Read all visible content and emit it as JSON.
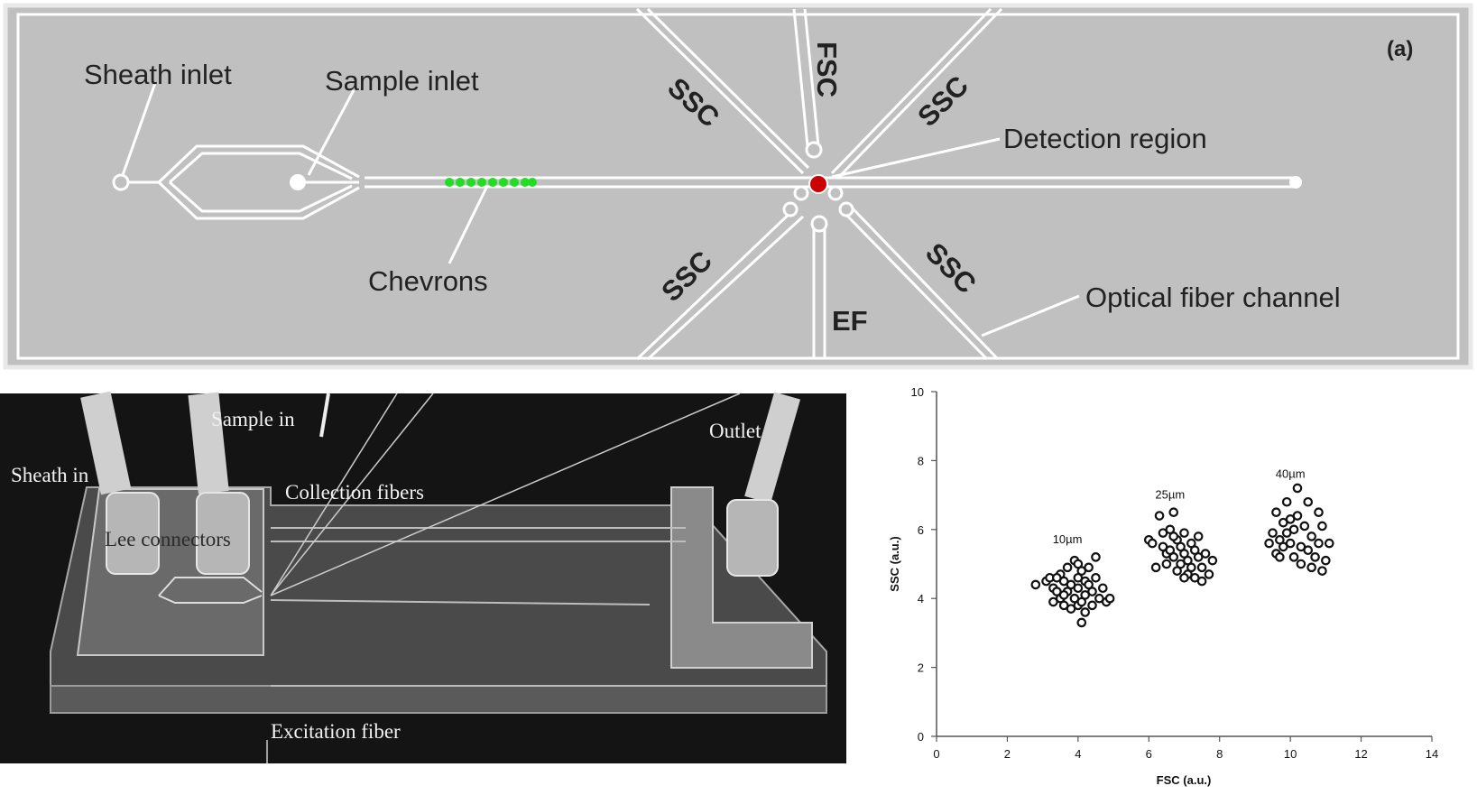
{
  "schematic": {
    "panel_label": "(a)",
    "labels": {
      "sheath_inlet": "Sheath inlet",
      "sample_inlet": "Sample inlet",
      "chevrons": "Chevrons",
      "detection_region": "Detection region",
      "optical_fiber_channel": "Optical fiber channel",
      "fsc": "FSC",
      "ef": "EF",
      "ssc_upper_left": "SSC",
      "ssc_upper_right": "SSC",
      "ssc_lower_left": "SSC",
      "ssc_lower_right": "SSC"
    },
    "colors": {
      "background": "#c0c0c0",
      "channel": "#ffffff",
      "chevrons": "#22dd22",
      "detection_spot": "#cc0000"
    }
  },
  "photo": {
    "labels": {
      "sheath_in": "Sheath in",
      "sample_in": "Sample in",
      "outlet": "Outlet",
      "collection_fibers": "Collection fibers",
      "lee_connectors": "Lee connectors",
      "excitation_fiber": "Excitation fiber"
    }
  },
  "chart_data": {
    "type": "scatter",
    "xlabel": "FSC (a.u.)",
    "ylabel": "SSC (a.u.)",
    "xlim": [
      0,
      14
    ],
    "ylim": [
      0,
      10
    ],
    "xticks": [
      0,
      2,
      4,
      6,
      8,
      10,
      12,
      14
    ],
    "yticks": [
      0,
      2,
      4,
      6,
      8,
      10
    ],
    "annotations": [
      {
        "text": "10µm",
        "x": 3.7,
        "y": 5.6
      },
      {
        "text": "25µm",
        "x": 6.6,
        "y": 6.9
      },
      {
        "text": "40µm",
        "x": 10.0,
        "y": 7.5
      }
    ],
    "series": [
      {
        "points": [
          [
            2.8,
            4.4
          ],
          [
            3.1,
            4.5
          ],
          [
            3.2,
            4.6
          ],
          [
            3.3,
            4.3
          ],
          [
            3.3,
            3.9
          ],
          [
            3.4,
            4.2
          ],
          [
            3.5,
            4.7
          ],
          [
            3.5,
            4.0
          ],
          [
            3.6,
            4.5
          ],
          [
            3.6,
            3.8
          ],
          [
            3.7,
            4.9
          ],
          [
            3.7,
            4.2
          ],
          [
            3.8,
            4.4
          ],
          [
            3.8,
            3.7
          ],
          [
            3.9,
            5.1
          ],
          [
            3.9,
            4.0
          ],
          [
            4.0,
            4.6
          ],
          [
            4.0,
            3.8
          ],
          [
            4.0,
            4.3
          ],
          [
            4.1,
            4.8
          ],
          [
            4.1,
            3.9
          ],
          [
            4.2,
            4.5
          ],
          [
            4.2,
            4.1
          ],
          [
            4.2,
            3.6
          ],
          [
            4.3,
            4.9
          ],
          [
            4.3,
            4.4
          ],
          [
            4.4,
            4.2
          ],
          [
            4.4,
            3.8
          ],
          [
            4.5,
            4.6
          ],
          [
            4.5,
            5.2
          ],
          [
            4.6,
            4.0
          ],
          [
            4.7,
            4.3
          ],
          [
            4.8,
            3.9
          ],
          [
            4.9,
            4.0
          ],
          [
            4.1,
            3.3
          ],
          [
            3.6,
            4.1
          ],
          [
            4.0,
            5.0
          ],
          [
            3.4,
            4.6
          ]
        ]
      },
      {
        "points": [
          [
            6.0,
            5.7
          ],
          [
            6.1,
            5.6
          ],
          [
            6.2,
            4.9
          ],
          [
            6.3,
            6.4
          ],
          [
            6.4,
            5.5
          ],
          [
            6.4,
            5.9
          ],
          [
            6.5,
            5.3
          ],
          [
            6.5,
            5.0
          ],
          [
            6.6,
            6.0
          ],
          [
            6.6,
            5.4
          ],
          [
            6.7,
            6.5
          ],
          [
            6.7,
            5.2
          ],
          [
            6.8,
            5.7
          ],
          [
            6.8,
            4.8
          ],
          [
            6.9,
            5.5
          ],
          [
            6.9,
            5.0
          ],
          [
            7.0,
            5.9
          ],
          [
            7.0,
            5.3
          ],
          [
            7.1,
            4.7
          ],
          [
            7.1,
            5.1
          ],
          [
            7.2,
            5.6
          ],
          [
            7.2,
            4.9
          ],
          [
            7.3,
            5.4
          ],
          [
            7.3,
            4.6
          ],
          [
            7.4,
            5.2
          ],
          [
            7.4,
            5.8
          ],
          [
            7.5,
            4.9
          ],
          [
            7.5,
            4.5
          ],
          [
            7.6,
            5.3
          ],
          [
            7.7,
            4.7
          ],
          [
            7.8,
            5.1
          ],
          [
            7.0,
            4.6
          ],
          [
            6.7,
            5.8
          ]
        ]
      },
      {
        "points": [
          [
            9.4,
            5.6
          ],
          [
            9.5,
            5.9
          ],
          [
            9.6,
            5.3
          ],
          [
            9.6,
            6.5
          ],
          [
            9.7,
            5.7
          ],
          [
            9.8,
            6.2
          ],
          [
            9.8,
            5.5
          ],
          [
            9.9,
            6.8
          ],
          [
            9.9,
            5.9
          ],
          [
            10.0,
            6.3
          ],
          [
            10.0,
            5.6
          ],
          [
            10.1,
            6.0
          ],
          [
            10.1,
            5.2
          ],
          [
            10.2,
            7.2
          ],
          [
            10.2,
            6.4
          ],
          [
            10.3,
            5.5
          ],
          [
            10.3,
            5.0
          ],
          [
            10.4,
            6.1
          ],
          [
            10.5,
            6.8
          ],
          [
            10.5,
            5.4
          ],
          [
            10.6,
            5.8
          ],
          [
            10.7,
            5.2
          ],
          [
            10.8,
            6.5
          ],
          [
            10.8,
            5.6
          ],
          [
            10.9,
            6.1
          ],
          [
            10.9,
            4.8
          ],
          [
            11.0,
            5.1
          ],
          [
            11.1,
            5.6
          ],
          [
            9.7,
            5.2
          ],
          [
            10.6,
            4.9
          ]
        ]
      }
    ]
  }
}
